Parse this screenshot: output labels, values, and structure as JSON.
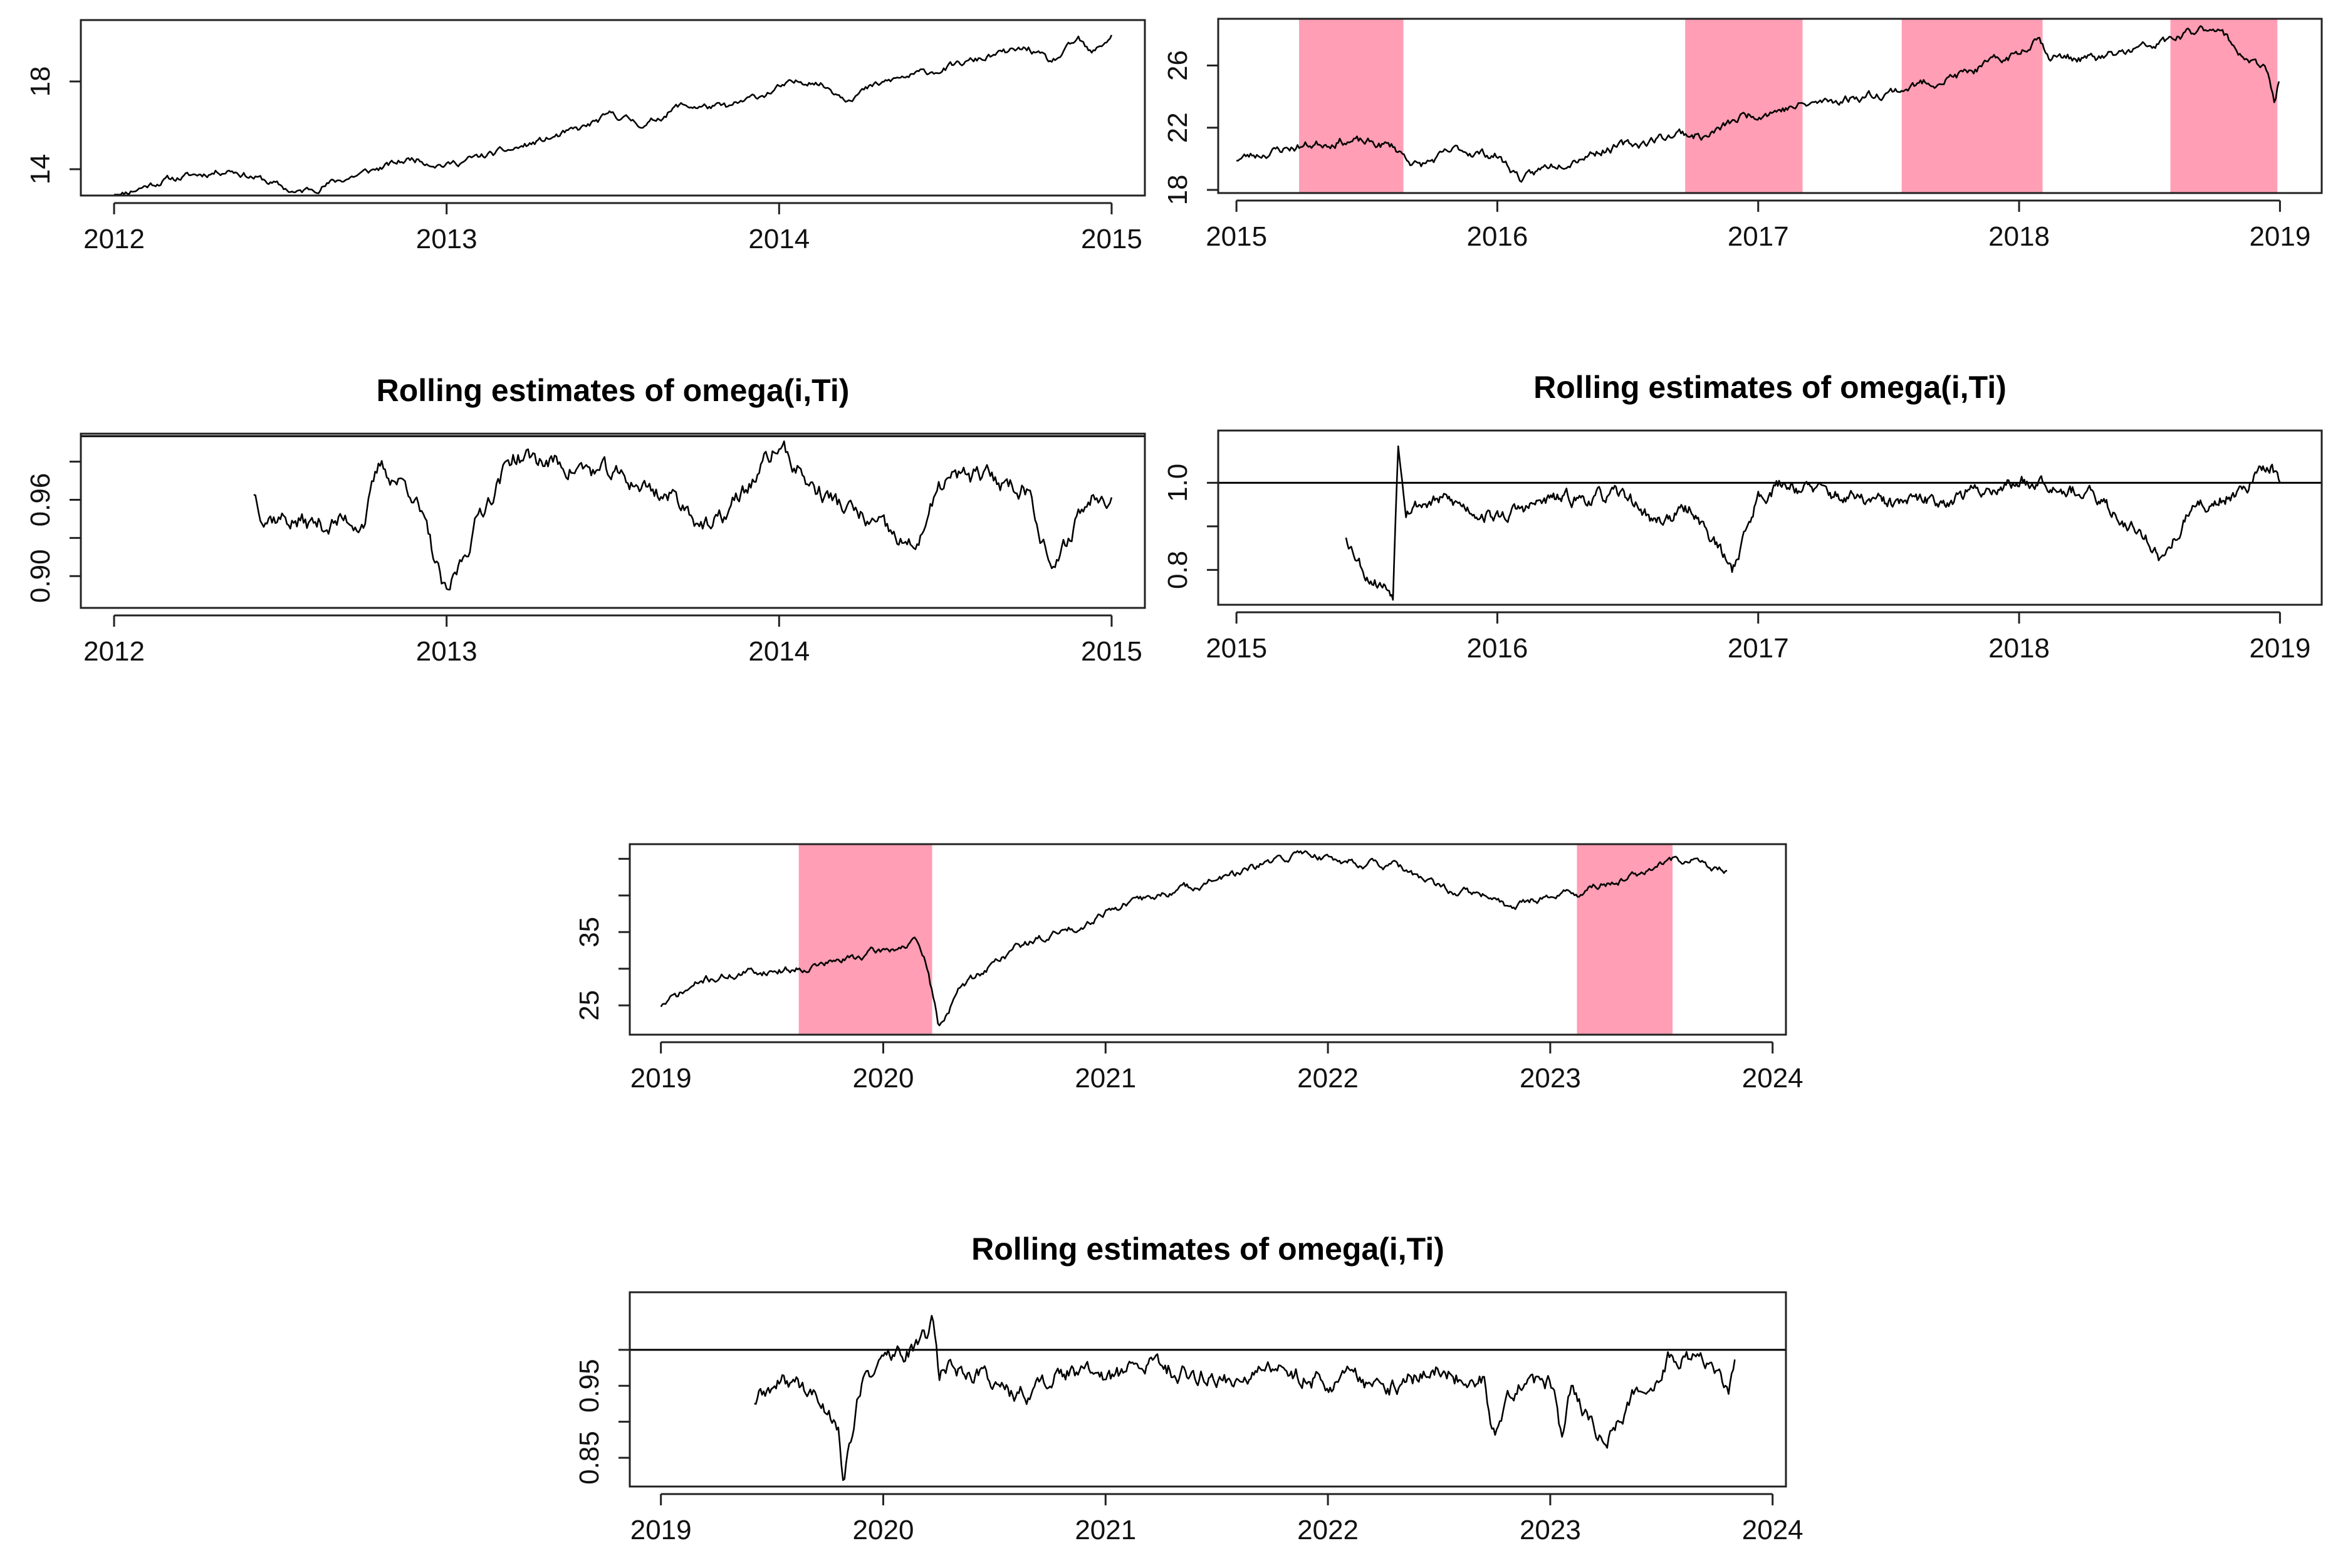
{
  "colors": {
    "shade": "#ff9eb4",
    "line": "#000000",
    "frame": "#222222"
  },
  "chart_data": [
    {
      "id": "p2012",
      "type": "line",
      "title": "",
      "xlabel": "",
      "ylabel": "",
      "xlim": [
        2011.9,
        2015.1
      ],
      "ylim": [
        12.8,
        20.8
      ],
      "xticks": [
        2012,
        2013,
        2014,
        2015
      ],
      "xtick_labels": [
        "2012",
        "2013",
        "2014",
        "2015"
      ],
      "yticks": [
        14,
        18
      ],
      "ytick_labels": [
        "14",
        "18"
      ],
      "hline": null,
      "shaded_intervals": [],
      "series": [
        {
          "name": "price",
          "noise": 0.12,
          "seed": 11,
          "step": 0.005,
          "points": [
            [
              2012.0,
              12.8
            ],
            [
              2012.15,
              13.5
            ],
            [
              2012.35,
              14.0
            ],
            [
              2012.45,
              13.5
            ],
            [
              2012.55,
              12.9
            ],
            [
              2012.7,
              13.6
            ],
            [
              2012.9,
              14.5
            ],
            [
              2013.0,
              14.2
            ],
            [
              2013.2,
              14.9
            ],
            [
              2013.4,
              15.8
            ],
            [
              2013.5,
              16.5
            ],
            [
              2013.6,
              16.0
            ],
            [
              2013.7,
              16.9
            ],
            [
              2013.85,
              16.8
            ],
            [
              2014.0,
              17.7
            ],
            [
              2014.1,
              18.1
            ],
            [
              2014.2,
              17.3
            ],
            [
              2014.35,
              18.1
            ],
            [
              2014.5,
              18.6
            ],
            [
              2014.65,
              19.2
            ],
            [
              2014.75,
              19.5
            ],
            [
              2014.82,
              18.8
            ],
            [
              2014.9,
              19.9
            ],
            [
              2014.94,
              19.2
            ],
            [
              2015.0,
              20.1
            ]
          ]
        }
      ]
    },
    {
      "id": "p2015",
      "type": "line",
      "title": "",
      "xlabel": "",
      "ylabel": "",
      "xlim": [
        2014.93,
        2019.16
      ],
      "ylim": [
        17.8,
        29.0
      ],
      "xticks": [
        2015,
        2016,
        2017,
        2018,
        2019
      ],
      "xtick_labels": [
        "2015",
        "2016",
        "2017",
        "2018",
        "2019"
      ],
      "yticks": [
        18,
        22,
        26
      ],
      "ytick_labels": [
        "18",
        "22",
        "26"
      ],
      "hline": null,
      "shaded_intervals": [
        [
          2015.24,
          2015.64
        ],
        [
          2016.72,
          2017.17
        ],
        [
          2017.55,
          2018.09
        ],
        [
          2018.58,
          2018.99
        ]
      ],
      "series": [
        {
          "name": "price",
          "noise": 0.22,
          "seed": 23,
          "step": 0.006,
          "points": [
            [
              2015.0,
              20.0
            ],
            [
              2015.2,
              20.7
            ],
            [
              2015.4,
              21.2
            ],
            [
              2015.6,
              20.8
            ],
            [
              2015.7,
              19.5
            ],
            [
              2015.85,
              20.6
            ],
            [
              2016.0,
              20.2
            ],
            [
              2016.1,
              18.6
            ],
            [
              2016.2,
              19.6
            ],
            [
              2016.4,
              20.6
            ],
            [
              2016.55,
              21.0
            ],
            [
              2016.7,
              21.7
            ],
            [
              2016.8,
              21.4
            ],
            [
              2016.95,
              22.8
            ],
            [
              2017.2,
              23.5
            ],
            [
              2017.5,
              24.3
            ],
            [
              2017.8,
              25.5
            ],
            [
              2018.0,
              26.8
            ],
            [
              2018.07,
              28.0
            ],
            [
              2018.12,
              26.6
            ],
            [
              2018.3,
              26.4
            ],
            [
              2018.5,
              27.2
            ],
            [
              2018.65,
              28.0
            ],
            [
              2018.75,
              28.6
            ],
            [
              2018.85,
              26.8
            ],
            [
              2018.95,
              25.5
            ],
            [
              2018.98,
              23.7
            ],
            [
              2019.0,
              25.2
            ]
          ]
        }
      ]
    },
    {
      "id": "o2012",
      "type": "line",
      "title": "Rolling estimates of omega(i,Ti)",
      "xlabel": "",
      "ylabel": "",
      "xlim": [
        2011.9,
        2015.1
      ],
      "ylim": [
        0.875,
        1.012
      ],
      "xticks": [
        2012,
        2013,
        2014,
        2015
      ],
      "xtick_labels": [
        "2012",
        "2013",
        "2014",
        "2015"
      ],
      "yticks": [
        0.9,
        0.93,
        0.96,
        0.99
      ],
      "ytick_labels": [
        "0.90",
        "",
        "0.96",
        ""
      ],
      "hline": 1.01,
      "shaded_intervals": [],
      "series": [
        {
          "name": "omega",
          "noise": 0.006,
          "seed": 37,
          "step": 0.005,
          "points": [
            [
              2012.42,
              0.967
            ],
            [
              2012.45,
              0.95
            ],
            [
              2012.6,
              0.94
            ],
            [
              2012.75,
              0.945
            ],
            [
              2012.8,
              0.985
            ],
            [
              2012.9,
              0.968
            ],
            [
              2013.0,
              0.88
            ],
            [
              2013.1,
              0.95
            ],
            [
              2013.2,
              0.995
            ],
            [
              2013.3,
              0.99
            ],
            [
              2013.4,
              0.985
            ],
            [
              2013.55,
              0.975
            ],
            [
              2013.7,
              0.96
            ],
            [
              2013.8,
              0.935
            ],
            [
              2013.95,
              0.985
            ],
            [
              2014.0,
              1.003
            ],
            [
              2014.1,
              0.97
            ],
            [
              2014.25,
              0.945
            ],
            [
              2014.4,
              0.92
            ],
            [
              2014.5,
              0.975
            ],
            [
              2014.6,
              0.978
            ],
            [
              2014.75,
              0.97
            ],
            [
              2014.83,
              0.9
            ],
            [
              2014.9,
              0.95
            ],
            [
              2014.97,
              0.969
            ],
            [
              2015.0,
              0.966
            ]
          ]
        }
      ]
    },
    {
      "id": "o2015",
      "type": "line",
      "title": "Rolling estimates of omega(i,Ti)",
      "xlabel": "",
      "ylabel": "",
      "xlim": [
        2014.93,
        2019.16
      ],
      "ylim": [
        0.72,
        1.12
      ],
      "xticks": [
        2015,
        2016,
        2017,
        2018,
        2019
      ],
      "xtick_labels": [
        "2015",
        "2016",
        "2017",
        "2018",
        "2019"
      ],
      "yticks": [
        0.8,
        0.9,
        1.0
      ],
      "ytick_labels": [
        "0.8",
        "",
        "1.0"
      ],
      "hline": 1.0,
      "shaded_intervals": [],
      "series": [
        {
          "name": "omega",
          "noise": 0.012,
          "seed": 53,
          "step": 0.005,
          "points": [
            [
              2015.42,
              0.88
            ],
            [
              2015.5,
              0.79
            ],
            [
              2015.6,
              0.75
            ],
            [
              2015.62,
              1.1
            ],
            [
              2015.65,
              0.95
            ],
            [
              2015.8,
              0.96
            ],
            [
              2016.0,
              0.92
            ],
            [
              2016.2,
              0.96
            ],
            [
              2016.5,
              0.97
            ],
            [
              2016.6,
              0.91
            ],
            [
              2016.75,
              0.94
            ],
            [
              2016.9,
              0.8
            ],
            [
              2017.0,
              0.97
            ],
            [
              2017.1,
              1.0
            ],
            [
              2017.3,
              0.97
            ],
            [
              2017.5,
              0.95
            ],
            [
              2017.7,
              0.96
            ],
            [
              2017.9,
              0.99
            ],
            [
              2018.1,
              1.01
            ],
            [
              2018.3,
              0.96
            ],
            [
              2018.5,
              0.87
            ],
            [
              2018.55,
              0.82
            ],
            [
              2018.65,
              0.93
            ],
            [
              2018.8,
              0.97
            ],
            [
              2018.97,
              1.04
            ],
            [
              2019.0,
              0.99
            ]
          ]
        }
      ]
    },
    {
      "id": "p2019",
      "type": "line",
      "title": "",
      "xlabel": "",
      "ylabel": "",
      "xlim": [
        2018.86,
        2024.06
      ],
      "ylim": [
        21.0,
        47.0
      ],
      "xticks": [
        2019,
        2020,
        2021,
        2022,
        2023,
        2024
      ],
      "xtick_labels": [
        "2019",
        "2020",
        "2021",
        "2022",
        "2023",
        "2024"
      ],
      "yticks": [
        25,
        30,
        35,
        40,
        45
      ],
      "ytick_labels": [
        "25",
        "",
        "35",
        "",
        ""
      ],
      "hline": null,
      "shaded_intervals": [
        [
          2019.62,
          2020.22
        ],
        [
          2023.12,
          2023.55
        ]
      ],
      "series": [
        {
          "name": "price",
          "noise": 0.4,
          "seed": 71,
          "step": 0.007,
          "points": [
            [
              2019.0,
              25.0
            ],
            [
              2019.2,
              28.5
            ],
            [
              2019.4,
              29.5
            ],
            [
              2019.6,
              30.0
            ],
            [
              2019.8,
              31.0
            ],
            [
              2020.0,
              32.5
            ],
            [
              2020.15,
              33.5
            ],
            [
              2020.2,
              30.0
            ],
            [
              2020.25,
              22.0
            ],
            [
              2020.35,
              27.5
            ],
            [
              2020.6,
              33.0
            ],
            [
              2020.9,
              36.0
            ],
            [
              2021.0,
              38.0
            ],
            [
              2021.3,
              40.5
            ],
            [
              2021.6,
              43.0
            ],
            [
              2021.9,
              46.0
            ],
            [
              2022.0,
              45.0
            ],
            [
              2022.3,
              44.0
            ],
            [
              2022.5,
              41.0
            ],
            [
              2022.7,
              40.0
            ],
            [
              2022.8,
              38.5
            ],
            [
              2023.0,
              40.0
            ],
            [
              2023.15,
              40.5
            ],
            [
              2023.3,
              42.0
            ],
            [
              2023.5,
              44.0
            ],
            [
              2023.6,
              45.0
            ],
            [
              2023.8,
              43.0
            ]
          ]
        }
      ]
    },
    {
      "id": "o2019",
      "type": "line",
      "title": "Rolling estimates of omega(i,Ti)",
      "xlabel": "",
      "ylabel": "",
      "xlim": [
        2018.86,
        2024.06
      ],
      "ylim": [
        0.81,
        1.08
      ],
      "xticks": [
        2019,
        2020,
        2021,
        2022,
        2023,
        2024
      ],
      "xtick_labels": [
        "2019",
        "2020",
        "2021",
        "2022",
        "2023",
        "2024"
      ],
      "yticks": [
        0.85,
        0.9,
        0.95,
        1.0
      ],
      "ytick_labels": [
        "0.85",
        "",
        "0.95",
        ""
      ],
      "hline": 1.0,
      "shaded_intervals": [],
      "series": [
        {
          "name": "omega",
          "noise": 0.01,
          "seed": 89,
          "step": 0.007,
          "points": [
            [
              2019.42,
              0.93
            ],
            [
              2019.6,
              0.96
            ],
            [
              2019.7,
              0.93
            ],
            [
              2019.8,
              0.9
            ],
            [
              2019.82,
              0.82
            ],
            [
              2019.9,
              0.95
            ],
            [
              2020.0,
              0.99
            ],
            [
              2020.15,
              1.0
            ],
            [
              2020.2,
              1.02
            ],
            [
              2020.22,
              1.06
            ],
            [
              2020.25,
              0.97
            ],
            [
              2020.3,
              0.98
            ],
            [
              2020.5,
              0.96
            ],
            [
              2020.6,
              0.93
            ],
            [
              2020.8,
              0.97
            ],
            [
              2021.0,
              0.96
            ],
            [
              2021.2,
              0.98
            ],
            [
              2021.5,
              0.96
            ],
            [
              2021.8,
              0.97
            ],
            [
              2022.0,
              0.96
            ],
            [
              2022.3,
              0.95
            ],
            [
              2022.5,
              0.97
            ],
            [
              2022.7,
              0.96
            ],
            [
              2022.75,
              0.88
            ],
            [
              2022.85,
              0.95
            ],
            [
              2023.0,
              0.95
            ],
            [
              2023.05,
              0.88
            ],
            [
              2023.1,
              0.95
            ],
            [
              2023.25,
              0.86
            ],
            [
              2023.35,
              0.93
            ],
            [
              2023.45,
              0.96
            ],
            [
              2023.55,
              1.0
            ],
            [
              2023.7,
              0.98
            ],
            [
              2023.8,
              0.93
            ],
            [
              2023.83,
              0.98
            ]
          ]
        }
      ]
    }
  ]
}
